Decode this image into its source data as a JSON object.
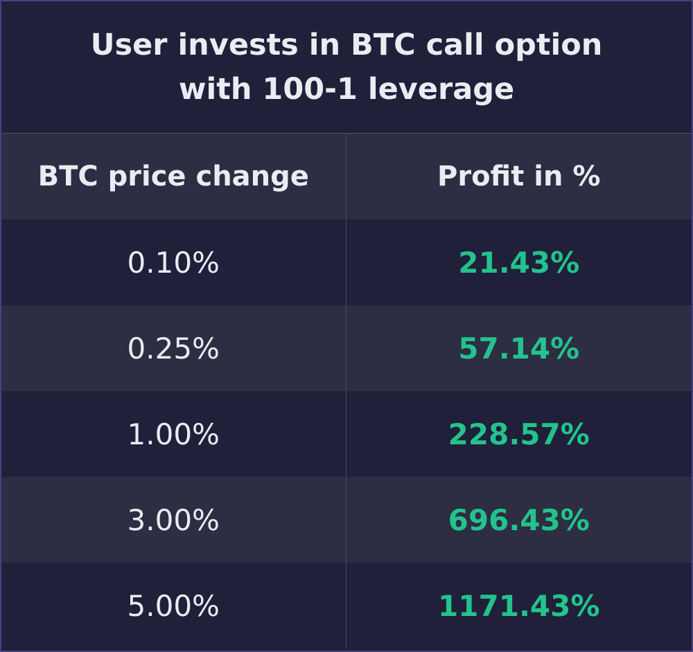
{
  "title_lines": [
    "User invests in BTC call option",
    "with 100-1 leverage"
  ],
  "chart_data": {
    "type": "table",
    "title": "User invests in BTC call option with 100-1 leverage",
    "columns": [
      "BTC price change",
      "Profit in %"
    ],
    "rows": [
      [
        "0.10%",
        "21.43%"
      ],
      [
        "0.25%",
        "57.14%"
      ],
      [
        "1.00%",
        "228.57%"
      ],
      [
        "3.00%",
        "696.43%"
      ],
      [
        "5.00%",
        "1171.43%"
      ]
    ]
  },
  "colors": {
    "background": "#20203a",
    "row_alt": "#2d2d43",
    "text": "#ebebf2",
    "profit": "#22c38c",
    "border": "#4a3f86"
  }
}
